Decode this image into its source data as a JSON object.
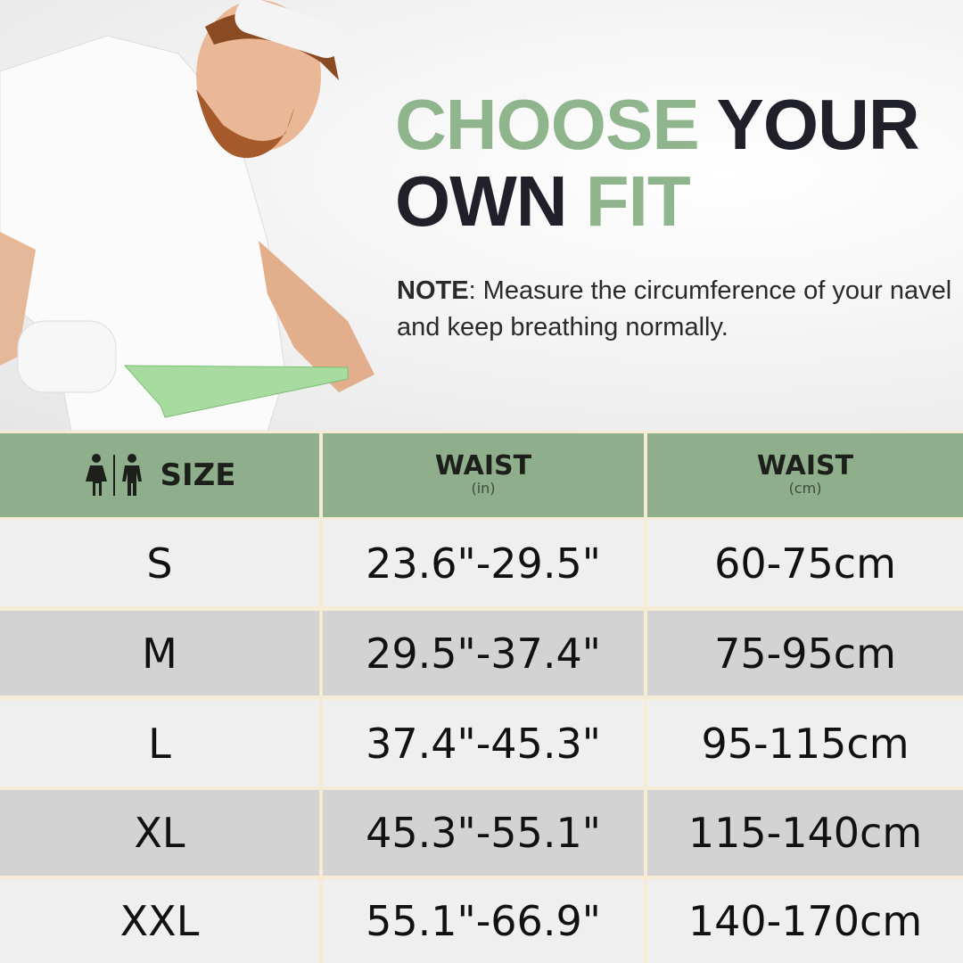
{
  "title": {
    "line1_green": "CHOOSE",
    "line1_dark": "YOUR",
    "line2_dark": "OWN",
    "line2_green": "FIT"
  },
  "note": {
    "label": "NOTE",
    "text": ": Measure the circumference of your navel and keep breathing normally."
  },
  "table": {
    "headers": [
      {
        "label": "SIZE",
        "icon": "restroom-people-icon"
      },
      {
        "label": "WAIST",
        "unit": "(in)"
      },
      {
        "label": "WAIST",
        "unit": "(cm)"
      }
    ],
    "rows": [
      [
        "S",
        "23.6\"-29.5\"",
        "60-75cm"
      ],
      [
        "M",
        "29.5\"-37.4\"",
        "75-95cm"
      ],
      [
        "L",
        "37.4\"-45.3\"",
        "95-115cm"
      ],
      [
        "XL",
        "45.3\"-55.1\"",
        "115-140cm"
      ],
      [
        "XXL",
        "55.1\"-66.9\"",
        "140-170cm"
      ]
    ]
  },
  "colors": {
    "green": "#8fb58d",
    "header_green": "#8fae8c",
    "dark": "#1f2029"
  }
}
